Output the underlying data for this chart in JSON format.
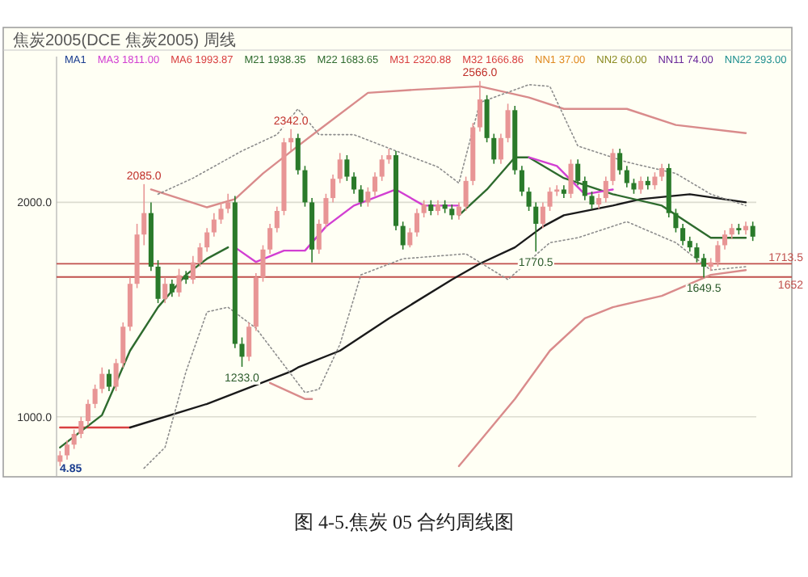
{
  "chart_data": {
    "type": "candlestick",
    "title": "图 4-5.焦炭 05 合约周线图",
    "subtitle": "焦炭2005(DCE 焦炭2005) 周线",
    "categories": [
      null,
      null,
      null,
      null,
      null,
      null,
      null,
      null,
      null,
      null,
      null,
      null,
      null,
      null,
      null,
      null,
      null,
      null,
      null,
      null,
      null,
      null,
      null,
      null,
      null,
      null,
      null,
      null,
      null,
      null,
      null,
      null,
      null,
      null,
      null,
      null,
      null,
      null,
      null,
      null,
      null,
      null,
      null,
      null,
      null,
      null,
      null,
      null,
      null,
      null,
      null,
      null,
      null,
      null,
      null,
      null,
      null,
      null,
      null,
      null,
      null,
      null,
      null,
      null,
      null,
      null,
      null,
      null,
      null,
      null,
      null,
      null,
      null,
      null,
      null,
      null,
      null,
      null,
      null,
      null,
      null,
      null,
      null,
      null,
      null,
      null,
      null,
      null,
      null,
      null,
      null,
      null,
      null,
      null,
      null,
      null,
      null,
      null,
      null,
      null
    ],
    "ylim": [
      720,
      2680
    ],
    "yticks": [
      {
        "value": 1000,
        "label": "1000.0"
      },
      {
        "value": 2000,
        "label": "2000.0"
      }
    ],
    "grid": "y",
    "tick_labels": "y",
    "series": [
      {
        "ohlc": [
          [
            790,
            840,
            770,
            820
          ],
          [
            820,
            890,
            800,
            870
          ],
          [
            870,
            940,
            850,
            920
          ],
          [
            920,
            1000,
            900,
            980
          ],
          [
            980,
            1080,
            960,
            1060
          ],
          [
            1060,
            1150,
            1040,
            1130
          ],
          [
            1130,
            1230,
            1110,
            1200
          ],
          [
            1200,
            1220,
            1120,
            1140
          ],
          [
            1140,
            1270,
            1120,
            1250
          ],
          [
            1250,
            1440,
            1230,
            1420
          ],
          [
            1420,
            1650,
            1400,
            1620
          ],
          [
            1620,
            1900,
            1600,
            1850
          ],
          [
            1850,
            2085,
            1800,
            1950
          ],
          [
            1950,
            2000,
            1680,
            1700
          ],
          [
            1700,
            1730,
            1530,
            1550
          ],
          [
            1550,
            1650,
            1530,
            1620
          ],
          [
            1620,
            1640,
            1560,
            1580
          ],
          [
            1580,
            1690,
            1560,
            1660
          ],
          [
            1660,
            1680,
            1620,
            1640
          ],
          [
            1640,
            1750,
            1620,
            1720
          ],
          [
            1720,
            1810,
            1700,
            1790
          ],
          [
            1790,
            1880,
            1770,
            1860
          ],
          [
            1860,
            1950,
            1840,
            1920
          ],
          [
            1920,
            2000,
            1900,
            1970
          ],
          [
            1970,
            2040,
            1950,
            2000
          ],
          [
            2000,
            2030,
            1320,
            1340
          ],
          [
            1340,
            1370,
            1233,
            1280
          ],
          [
            1280,
            1440,
            1260,
            1420
          ],
          [
            1420,
            1670,
            1400,
            1650
          ],
          [
            1650,
            1800,
            1630,
            1780
          ],
          [
            1780,
            1900,
            1760,
            1880
          ],
          [
            1880,
            1980,
            1860,
            1960
          ],
          [
            1960,
            2300,
            1940,
            2280
          ],
          [
            2280,
            2342,
            2240,
            2300
          ],
          [
            2300,
            2320,
            2130,
            2150
          ],
          [
            2150,
            2170,
            1980,
            2000
          ],
          [
            2000,
            2020,
            1720,
            1780
          ],
          [
            1780,
            1920,
            1760,
            1900
          ],
          [
            1900,
            2040,
            1880,
            2020
          ],
          [
            2020,
            2130,
            2000,
            2110
          ],
          [
            2110,
            2230,
            2090,
            2200
          ],
          [
            2200,
            2220,
            2100,
            2120
          ],
          [
            2120,
            2140,
            2040,
            2060
          ],
          [
            2060,
            2080,
            1980,
            2000
          ],
          [
            2000,
            2070,
            1980,
            2050
          ],
          [
            2050,
            2140,
            2030,
            2120
          ],
          [
            2120,
            2220,
            2100,
            2200
          ],
          [
            2200,
            2250,
            2180,
            2220
          ],
          [
            2220,
            2240,
            1870,
            1890
          ],
          [
            1890,
            1910,
            1780,
            1800
          ],
          [
            1800,
            1880,
            1790,
            1860
          ],
          [
            1860,
            1970,
            1840,
            1950
          ],
          [
            1950,
            2010,
            1930,
            1990
          ],
          [
            1990,
            2010,
            1940,
            1960
          ],
          [
            1960,
            2010,
            1940,
            1990
          ],
          [
            1990,
            2010,
            1950,
            1970
          ],
          [
            1970,
            1990,
            1920,
            1940
          ],
          [
            1940,
            2000,
            1920,
            1980
          ],
          [
            1980,
            2120,
            1960,
            2100
          ],
          [
            2100,
            2370,
            2080,
            2350
          ],
          [
            2350,
            2566,
            2330,
            2480
          ],
          [
            2480,
            2500,
            2280,
            2300
          ],
          [
            2300,
            2320,
            2180,
            2200
          ],
          [
            2200,
            2320,
            2180,
            2300
          ],
          [
            2300,
            2460,
            2280,
            2430
          ],
          [
            2430,
            2450,
            2130,
            2150
          ],
          [
            2150,
            2170,
            2030,
            2050
          ],
          [
            2050,
            2070,
            1960,
            1980
          ],
          [
            1980,
            2000,
            1770.5,
            1900
          ],
          [
            1900,
            2000,
            1880,
            1980
          ],
          [
            1980,
            2070,
            1960,
            2050
          ],
          [
            2050,
            2080,
            2030,
            2060
          ],
          [
            2060,
            2080,
            2020,
            2040
          ],
          [
            2040,
            2200,
            2020,
            2180
          ],
          [
            2180,
            2200,
            2080,
            2100
          ],
          [
            2100,
            2120,
            2010,
            2030
          ],
          [
            2030,
            2050,
            1970,
            1990
          ],
          [
            1990,
            2040,
            1970,
            2020
          ],
          [
            2020,
            2120,
            2000,
            2100
          ],
          [
            2100,
            2250,
            2080,
            2230
          ],
          [
            2230,
            2250,
            2130,
            2150
          ],
          [
            2150,
            2170,
            2070,
            2090
          ],
          [
            2090,
            2110,
            2040,
            2060
          ],
          [
            2060,
            2120,
            2040,
            2100
          ],
          [
            2100,
            2120,
            2060,
            2080
          ],
          [
            2080,
            2140,
            2060,
            2120
          ],
          [
            2120,
            2180,
            2100,
            2160
          ],
          [
            2160,
            2180,
            1930,
            1950
          ],
          [
            1950,
            1970,
            1860,
            1880
          ],
          [
            1880,
            1900,
            1800,
            1820
          ],
          [
            1820,
            1840,
            1770,
            1790
          ],
          [
            1790,
            1810,
            1720,
            1740
          ],
          [
            1740,
            1760,
            1649.5,
            1700
          ],
          [
            1700,
            1740,
            1680,
            1720
          ],
          [
            1720,
            1820,
            1700,
            1800
          ],
          [
            1800,
            1870,
            1780,
            1850
          ],
          [
            1850,
            1900,
            1830,
            1880
          ],
          [
            1880,
            1900,
            1850,
            1870
          ],
          [
            1870,
            1910,
            1850,
            1890
          ],
          [
            1890,
            1910,
            1820,
            1840
          ]
        ],
        "colors": [
          "#e89595",
          "#e89595",
          "#e89595",
          "#e89595",
          "#e89595",
          "#e89595",
          "#e89595",
          "#2a7a2a",
          "#e89595",
          "#e89595",
          "#e89595",
          "#e89595",
          "#e89595",
          "#2a7a2a",
          "#2a7a2a",
          "#e89595",
          "#2a7a2a",
          "#e89595",
          "#2a7a2a",
          "#e89595",
          "#e89595",
          "#e89595",
          "#e89595",
          "#e89595",
          "#e89595",
          "#2a7a2a",
          "#2a7a2a",
          "#e89595",
          "#e89595",
          "#e89595",
          "#e89595",
          "#e89595",
          "#e89595",
          "#e89595",
          "#2a7a2a",
          "#2a7a2a",
          "#2a7a2a",
          "#e89595",
          "#e89595",
          "#e89595",
          "#e89595",
          "#2a7a2a",
          "#2a7a2a",
          "#2a7a2a",
          "#e89595",
          "#e89595",
          "#e89595",
          "#e89595",
          "#2a7a2a",
          "#2a7a2a",
          "#e89595",
          "#e89595",
          "#e89595",
          "#2a7a2a",
          "#e89595",
          "#2a7a2a",
          "#2a7a2a",
          "#e89595",
          "#e89595",
          "#e89595",
          "#e89595",
          "#2a7a2a",
          "#2a7a2a",
          "#e89595",
          "#e89595",
          "#2a7a2a",
          "#2a7a2a",
          "#2a7a2a",
          "#2a7a2a",
          "#e89595",
          "#e89595",
          "#e89595",
          "#2a7a2a",
          "#e89595",
          "#2a7a2a",
          "#2a7a2a",
          "#2a7a2a",
          "#e89595",
          "#e89595",
          "#e89595",
          "#2a7a2a",
          "#2a7a2a",
          "#2a7a2a",
          "#e89595",
          "#2a7a2a",
          "#e89595",
          "#e89595",
          "#2a7a2a",
          "#2a7a2a",
          "#2a7a2a",
          "#2a7a2a",
          "#2a7a2a",
          "#2a7a2a",
          "#e89595",
          "#e89595",
          "#e89595",
          "#e89595",
          "#2a7a2a",
          "#e89595",
          "#2a7a2a"
        ]
      },
      {
        "type": "line",
        "color": "#d94040",
        "values": [
          950,
          null,
          null,
          null,
          null,
          null,
          null,
          null,
          null,
          null,
          950,
          null,
          null,
          null,
          null,
          null,
          null,
          null,
          null,
          null,
          null,
          null,
          null,
          null,
          null,
          null,
          null,
          null,
          null,
          null,
          null,
          null,
          null,
          null,
          null,
          null,
          null,
          null,
          null,
          null,
          null,
          null,
          null,
          null,
          null,
          null,
          null,
          null,
          null,
          null,
          null,
          null,
          null,
          null,
          null,
          null,
          null,
          null,
          null,
          null,
          null,
          null,
          null,
          null,
          null,
          null,
          null,
          null,
          null,
          null,
          null,
          null,
          null,
          null,
          null,
          null,
          null,
          null,
          null,
          null,
          null,
          null,
          null,
          null,
          null,
          null,
          null,
          null,
          null,
          null,
          null,
          null,
          null,
          null,
          null,
          null,
          null,
          null,
          null,
          null
        ]
      },
      {
        "type": "line",
        "color": "#1a1a1a",
        "values": [
          null,
          null,
          null,
          null,
          null,
          null,
          null,
          null,
          null,
          null,
          950,
          null,
          null,
          null,
          null,
          null,
          null,
          null,
          null,
          null,
          null,
          1060,
          null,
          null,
          null,
          null,
          null,
          null,
          null,
          null,
          null,
          null,
          null,
          1211,
          1230,
          null,
          null,
          null,
          null,
          null,
          1308,
          null,
          null,
          null,
          null,
          null,
          null,
          1459,
          null,
          null,
          null,
          null,
          null,
          null,
          null,
          null,
          1640,
          null,
          null,
          null,
          1714,
          null,
          null,
          null,
          null,
          1790,
          null,
          null,
          null,
          1887,
          null,
          null,
          1940,
          null,
          null,
          null,
          null,
          null,
          null,
          1985,
          null,
          null,
          null,
          2015,
          null,
          null,
          null,
          null,
          null,
          null,
          2038,
          null,
          null,
          null,
          null,
          null,
          null,
          null,
          2000,
          null
        ]
      },
      {
        "type": "line",
        "color": "#2e6b2e",
        "values": [
          857,
          null,
          null,
          null,
          null,
          null,
          1008,
          null,
          null,
          null,
          1308,
          null,
          null,
          null,
          1511,
          null,
          null,
          null,
          1662,
          null,
          null,
          1737,
          null,
          null,
          1790,
          null,
          null,
          null,
          null,
          null,
          null,
          null,
          null,
          null,
          null,
          null,
          null,
          null,
          null,
          null,
          null,
          null,
          null,
          null,
          null,
          null,
          null,
          null,
          null,
          null,
          null,
          null,
          null,
          null,
          null,
          null,
          null,
          null,
          null,
          null,
          null,
          null,
          null,
          null,
          null,
          null,
          null,
          null,
          null,
          null,
          null,
          null,
          null,
          null,
          null,
          null,
          null,
          null,
          null,
          null,
          null,
          null,
          null,
          null,
          null,
          null,
          null,
          null,
          null,
          null,
          null,
          null,
          null,
          null,
          null,
          null,
          null,
          null,
          null,
          null
        ]
      },
      {
        "type": "line",
        "color": "#2e6b2e",
        "values": [
          null,
          null,
          null,
          null,
          null,
          null,
          null,
          null,
          null,
          null,
          null,
          null,
          null,
          null,
          null,
          null,
          null,
          null,
          null,
          null,
          null,
          null,
          null,
          null,
          null,
          null,
          null,
          null,
          null,
          null,
          null,
          null,
          null,
          null,
          null,
          null,
          null,
          null,
          null,
          null,
          null,
          null,
          null,
          null,
          null,
          null,
          null,
          null,
          null,
          null,
          null,
          null,
          null,
          null,
          null,
          null,
          null,
          1940,
          null,
          null,
          null,
          2060,
          null,
          null,
          null,
          2210,
          null,
          2210,
          null,
          null,
          null,
          null,
          2113,
          null,
          null,
          null,
          null,
          null,
          null,
          2038,
          null,
          null,
          null,
          null,
          null,
          null,
          1985,
          null,
          null,
          null,
          null,
          null,
          null,
          1835,
          null,
          null,
          null,
          null,
          1835,
          null
        ]
      },
      {
        "type": "line",
        "color": "#d23fd2",
        "values": [
          null,
          null,
          null,
          null,
          null,
          null,
          null,
          null,
          null,
          null,
          null,
          null,
          null,
          null,
          null,
          null,
          null,
          null,
          null,
          null,
          null,
          null,
          null,
          null,
          null,
          1790,
          null,
          null,
          1722,
          null,
          null,
          null,
          1775,
          null,
          null,
          1775,
          null,
          null,
          1887,
          null,
          null,
          null,
          1985,
          null,
          null,
          null,
          null,
          null,
          2060,
          null,
          null,
          null,
          1985,
          null,
          null,
          null,
          null,
          1985,
          null,
          null,
          null,
          null,
          null,
          null,
          null,
          null,
          null,
          null,
          null,
          null,
          null,
          null,
          null,
          null,
          null,
          null,
          null,
          null,
          null,
          null,
          null,
          null,
          null,
          null,
          null,
          null,
          null,
          null,
          null,
          null,
          null,
          null,
          null,
          null,
          null,
          null,
          null,
          null,
          null,
          null
        ]
      },
      {
        "type": "line",
        "color": "#d23fd2",
        "values": [
          null,
          null,
          null,
          null,
          null,
          null,
          null,
          null,
          null,
          null,
          null,
          null,
          null,
          null,
          null,
          null,
          null,
          null,
          null,
          null,
          null,
          null,
          null,
          null,
          null,
          null,
          null,
          null,
          null,
          null,
          null,
          null,
          null,
          null,
          null,
          null,
          null,
          null,
          null,
          null,
          null,
          null,
          null,
          null,
          null,
          null,
          null,
          null,
          null,
          null,
          null,
          null,
          null,
          null,
          null,
          null,
          null,
          null,
          null,
          null,
          null,
          null,
          null,
          null,
          null,
          null,
          null,
          2210,
          null,
          null,
          null,
          2170,
          null,
          null,
          null,
          2038,
          null,
          null,
          null,
          2060,
          null,
          null,
          null,
          null,
          null,
          null,
          null,
          null,
          null,
          null,
          null,
          null,
          null,
          null,
          null,
          null,
          null,
          null,
          null,
          null
        ]
      },
      {
        "type": "line",
        "color": "#d98b8b",
        "values": [
          null,
          null,
          null,
          null,
          null,
          null,
          null,
          null,
          null,
          null,
          null,
          null,
          null,
          2060,
          null,
          null,
          null,
          null,
          null,
          null,
          null,
          1977,
          null,
          null,
          null,
          2015,
          null,
          null,
          null,
          2135,
          null,
          null,
          null,
          null,
          2263,
          null,
          null,
          2338,
          null,
          null,
          null,
          null,
          null,
          null,
          2511,
          null,
          null,
          null,
          null,
          null,
          null,
          2526,
          null,
          null,
          null,
          null,
          null,
          null,
          null,
          null,
          2541,
          null,
          null,
          null,
          null,
          null,
          null,
          2489,
          null,
          null,
          null,
          null,
          2436,
          null,
          null,
          null,
          null,
          null,
          null,
          null,
          null,
          2436,
          null,
          null,
          null,
          null,
          null,
          null,
          2361,
          null,
          null,
          null,
          null,
          null,
          null,
          null,
          null,
          null,
          2323,
          null
        ]
      },
      {
        "type": "line",
        "color": "#d98b8b",
        "values": [
          null,
          null,
          null,
          null,
          null,
          null,
          null,
          null,
          null,
          null,
          null,
          null,
          null,
          null,
          null,
          null,
          null,
          null,
          null,
          null,
          null,
          null,
          null,
          null,
          null,
          null,
          null,
          null,
          null,
          null,
          1158,
          null,
          null,
          null,
          null,
          1083,
          1083,
          null,
          null,
          null,
          null,
          null,
          null,
          null,
          null,
          null,
          null,
          null,
          null,
          null,
          null,
          null,
          null,
          null,
          null,
          null,
          null,
          null,
          null,
          null,
          null,
          null,
          null,
          null,
          null,
          null,
          null,
          null,
          null,
          null,
          null,
          null,
          null,
          null,
          null,
          null,
          null,
          null,
          null,
          null,
          null,
          null,
          null,
          null,
          null,
          null,
          null,
          null,
          null,
          null,
          null,
          null,
          null,
          null,
          null,
          null,
          null,
          null,
          null,
          null
        ]
      },
      {
        "type": "line",
        "color": "#d98b8b",
        "values": [
          null,
          null,
          null,
          null,
          null,
          null,
          null,
          null,
          null,
          null,
          null,
          null,
          null,
          null,
          null,
          null,
          null,
          null,
          null,
          null,
          null,
          null,
          null,
          null,
          null,
          null,
          null,
          null,
          null,
          null,
          null,
          null,
          null,
          null,
          null,
          null,
          null,
          null,
          null,
          null,
          null,
          null,
          null,
          null,
          null,
          null,
          null,
          null,
          null,
          null,
          null,
          null,
          null,
          null,
          null,
          null,
          null,
          770,
          null,
          null,
          887,
          null,
          null,
          null,
          null,
          1083,
          null,
          null,
          null,
          null,
          1308,
          null,
          null,
          null,
          null,
          1459,
          null,
          null,
          null,
          1511,
          null,
          null,
          null,
          null,
          null,
          null,
          1564,
          null,
          null,
          null,
          null,
          null,
          null,
          1662,
          null,
          null,
          null,
          null,
          1684,
          null
        ]
      },
      {
        "type": "line",
        "color": "#8c8c8c",
        "line_style": "dotted",
        "values": [
          null,
          null,
          null,
          null,
          null,
          null,
          null,
          null,
          null,
          null,
          null,
          null,
          null,
          null,
          2038,
          null,
          null,
          null,
          null,
          2113,
          null,
          null,
          null,
          null,
          null,
          null,
          2240,
          null,
          null,
          null,
          null,
          2316,
          null,
          null,
          2436,
          null,
          null,
          2316,
          null,
          null,
          null,
          null,
          2316,
          null,
          null,
          null,
          null,
          null,
          2240,
          null,
          null,
          null,
          null,
          null,
          2165,
          null,
          null,
          2090,
          null,
          null,
          2466,
          null,
          null,
          null,
          null,
          null,
          null,
          2549,
          null,
          null,
          2541,
          null,
          null,
          null,
          2263,
          null,
          null,
          null,
          null,
          null,
          null,
          2188,
          null,
          null,
          null,
          null,
          null,
          null,
          2135,
          null,
          null,
          null,
          null,
          2038,
          null,
          null,
          null,
          null,
          1985,
          null
        ]
      },
      {
        "type": "line",
        "color": "#8c8c8c",
        "line_style": "dotted",
        "values": [
          null,
          null,
          null,
          null,
          null,
          null,
          null,
          null,
          null,
          null,
          null,
          null,
          760,
          null,
          null,
          857,
          null,
          null,
          1211,
          null,
          null,
          1489,
          null,
          null,
          1511,
          null,
          null,
          null,
          1413,
          null,
          null,
          null,
          null,
          null,
          null,
          1113,
          null,
          1128,
          null,
          null,
          1338,
          null,
          null,
          1662,
          null,
          null,
          null,
          null,
          null,
          1737,
          null,
          null,
          null,
          null,
          null,
          null,
          null,
          null,
          1760,
          null,
          null,
          null,
          null,
          null,
          1640,
          null,
          null,
          null,
          null,
          null,
          1812,
          null,
          null,
          null,
          1835,
          null,
          null,
          null,
          null,
          null,
          null,
          1910,
          null,
          null,
          null,
          null,
          null,
          null,
          1812,
          null,
          null,
          null,
          null,
          1684,
          null,
          null,
          null,
          null,
          1700,
          null
        ]
      }
    ],
    "ref_lines": [
      {
        "axis": "y",
        "value": 1713.5,
        "label": "1713.5",
        "color": "#c0504d"
      },
      {
        "axis": "y",
        "value": 1652,
        "label": "1652",
        "color": "#c0504d"
      }
    ],
    "annotations": [
      "MA1",
      "MA3 1811.00",
      "MA6 1993.87",
      "M21 1938.35",
      "M22 1683.65",
      "M31 2320.88",
      "M32 1666.86",
      "NN1 37.00",
      "NN2 60.00",
      "NN11 74.00",
      "NN22 293.00",
      "4.85",
      {
        "text": "2085.0",
        "y": 2085
      },
      {
        "text": "2342.0",
        "y": 2342
      },
      {
        "text": "2566.0",
        "y": 2566
      },
      {
        "text": "1233.0",
        "y": 1233
      },
      {
        "text": "1770.5",
        "y": 1770.5
      },
      {
        "text": "1649.5",
        "y": 1649.5
      }
    ]
  }
}
